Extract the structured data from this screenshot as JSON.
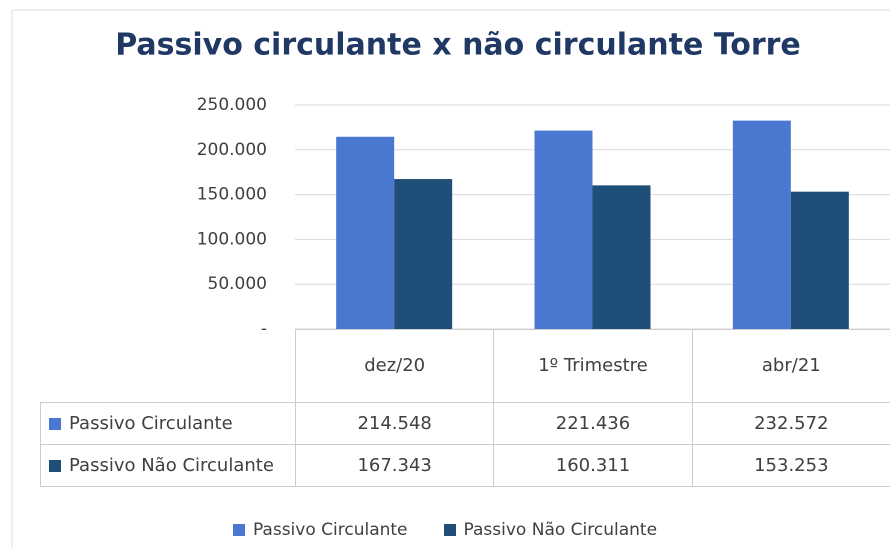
{
  "chart_data": {
    "type": "bar",
    "title": "Passivo circulante x não circulante  Torre",
    "categories": [
      "dez/20",
      "1º Trimestre",
      "abr/21"
    ],
    "series": [
      {
        "name": "Passivo Circulante",
        "color": "#4a78d0",
        "values": [
          214548,
          221436,
          232572
        ],
        "value_labels": [
          "214.548",
          "221.436",
          "232.572"
        ]
      },
      {
        "name": "Passivo Não Circulante",
        "color": "#1f4e79",
        "values": [
          167343,
          160311,
          153253
        ],
        "value_labels": [
          "167.343",
          "160.311",
          "153.253"
        ]
      }
    ],
    "ylim": [
      0,
      250000
    ],
    "yticks": [
      {
        "value": 0,
        "label": "-"
      },
      {
        "value": 50000,
        "label": "50.000"
      },
      {
        "value": 100000,
        "label": "100.000"
      },
      {
        "value": 150000,
        "label": "150.000"
      },
      {
        "value": 200000,
        "label": "200.000"
      },
      {
        "value": 250000,
        "label": "250.000"
      }
    ],
    "grid": true,
    "legend": "bottom"
  }
}
